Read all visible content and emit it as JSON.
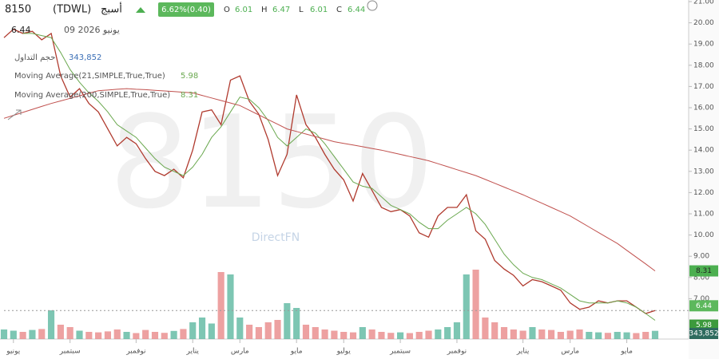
{
  "chart_data": {
    "type": "line",
    "symbol": "8150",
    "exchange": "(TDWL)",
    "name": "أسبج",
    "change_label": "6.62%(0.40)",
    "ohlc": [
      {
        "label": "O",
        "value": 6.01
      },
      {
        "label": "H",
        "value": 6.47
      },
      {
        "label": "L",
        "value": 6.01
      },
      {
        "label": "C",
        "value": 6.44
      }
    ],
    "date": "09 يونيو 2026",
    "watermark": "8150",
    "brand": "DirectFN",
    "xlim": [
      0,
      69
    ],
    "xticks": [
      {
        "value": 1,
        "label": "يونيو"
      },
      {
        "value": 7,
        "label": "سبتمبر"
      },
      {
        "value": 14,
        "label": "نوفمبر"
      },
      {
        "value": 20,
        "label": "يناير"
      },
      {
        "value": 25,
        "label": "مارس"
      },
      {
        "value": 31,
        "label": "مايو"
      },
      {
        "value": 36,
        "label": "يوليو"
      },
      {
        "value": 42,
        "label": "سبتمبر"
      },
      {
        "value": 48,
        "label": "نوفمبر"
      },
      {
        "value": 55,
        "label": "يناير"
      },
      {
        "value": 60,
        "label": "مارس"
      },
      {
        "value": 66,
        "label": "مايو"
      }
    ],
    "ylim": [
      6,
      21
    ],
    "yticks": [
      {
        "value": 7,
        "label": "7.00"
      },
      {
        "value": 8,
        "label": "8.00"
      },
      {
        "value": 9,
        "label": "9.00"
      },
      {
        "value": 10,
        "label": "10.00"
      },
      {
        "value": 11,
        "label": "11.00"
      },
      {
        "value": 12,
        "label": "12.00"
      },
      {
        "value": 13,
        "label": "13.00"
      },
      {
        "value": 14,
        "label": "14.00"
      },
      {
        "value": 15,
        "label": "15.00"
      },
      {
        "value": 16,
        "label": "16.00"
      },
      {
        "value": 17,
        "label": "17.00"
      },
      {
        "value": 18,
        "label": "18.00"
      },
      {
        "value": 19,
        "label": "19.00"
      },
      {
        "value": 20,
        "label": "20.00"
      },
      {
        "value": 21,
        "label": "21.00"
      }
    ],
    "price": {
      "color": "#b03a2e",
      "values": [
        19.3,
        19.7,
        19.5,
        19.6,
        19.2,
        19.5,
        17.5,
        16.5,
        16.9,
        16.2,
        15.8,
        15.0,
        14.2,
        14.6,
        14.3,
        13.6,
        13.0,
        12.8,
        13.1,
        12.7,
        14.0,
        15.8,
        15.9,
        15.2,
        17.3,
        17.5,
        16.3,
        15.7,
        14.5,
        12.8,
        13.8,
        16.6,
        15.2,
        14.6,
        13.8,
        13.1,
        12.6,
        11.6,
        12.9,
        12.1,
        11.3,
        11.1,
        11.2,
        10.9,
        10.1,
        9.9,
        10.9,
        11.3,
        11.3,
        11.9,
        10.2,
        9.8,
        8.8,
        8.4,
        8.1,
        7.6,
        7.9,
        7.8,
        7.6,
        7.4,
        6.8,
        6.5,
        6.6,
        6.9,
        6.8,
        6.9,
        6.9,
        6.6,
        6.3,
        6.44
      ]
    },
    "series": [
      {
        "name": "Moving Average(21,SIMPLE,True,True)",
        "color": "#6aa84f",
        "values": [
          null,
          null,
          19.5,
          19.5,
          19.4,
          19.3,
          18.6,
          17.8,
          17.2,
          16.7,
          16.3,
          15.8,
          15.2,
          14.9,
          14.6,
          14.1,
          13.6,
          13.2,
          13.0,
          12.8,
          13.2,
          13.8,
          14.6,
          15.1,
          15.8,
          16.5,
          16.4,
          16.0,
          15.4,
          14.6,
          14.2,
          14.6,
          15.0,
          14.8,
          14.3,
          13.7,
          13.1,
          12.5,
          12.3,
          12.2,
          11.8,
          11.4,
          11.2,
          11.0,
          10.6,
          10.3,
          10.3,
          10.7,
          11.0,
          11.3,
          11.0,
          10.5,
          9.8,
          9.1,
          8.6,
          8.2,
          8.0,
          7.9,
          7.7,
          7.5,
          7.2,
          6.9,
          6.8,
          6.8,
          6.8,
          6.9,
          6.8,
          6.6,
          6.3,
          5.98
        ]
      },
      {
        "name": "Moving Average(200,SIMPLE,True,True)",
        "color": "#c0504d",
        "values": [
          15.5,
          15.64,
          15.78,
          15.92,
          16.06,
          16.2,
          16.32,
          16.44,
          16.56,
          16.68,
          16.8,
          16.83,
          16.87,
          16.9,
          16.87,
          16.85,
          16.82,
          16.79,
          16.76,
          16.73,
          16.7,
          16.58,
          16.46,
          16.34,
          16.22,
          16.1,
          15.88,
          15.66,
          15.44,
          15.22,
          15.0,
          14.88,
          14.76,
          14.64,
          14.52,
          14.4,
          14.32,
          14.24,
          14.16,
          14.08,
          14.0,
          13.9,
          13.8,
          13.7,
          13.6,
          13.5,
          13.36,
          13.22,
          13.08,
          12.94,
          12.8,
          12.62,
          12.44,
          12.26,
          12.08,
          11.9,
          11.7,
          11.5,
          11.3,
          11.1,
          10.9,
          10.64,
          10.38,
          10.12,
          9.86,
          9.6,
          9.28,
          8.96,
          8.64,
          8.31
        ]
      }
    ],
    "volume": {
      "name": "حجم التداول",
      "last_label": "343,852",
      "vlim": [
        0,
        3000000
      ],
      "values": [
        400000,
        350000,
        300000,
        380000,
        420000,
        1200000,
        600000,
        500000,
        350000,
        300000,
        280000,
        320000,
        400000,
        300000,
        250000,
        380000,
        300000,
        260000,
        340000,
        420000,
        700000,
        900000,
        650000,
        2800000,
        2700000,
        900000,
        600000,
        500000,
        700000,
        800000,
        1500000,
        1300000,
        600000,
        500000,
        400000,
        350000,
        300000,
        280000,
        500000,
        400000,
        300000,
        260000,
        280000,
        250000,
        300000,
        350000,
        400000,
        500000,
        700000,
        2700000,
        2900000,
        900000,
        700000,
        500000,
        400000,
        350000,
        500000,
        400000,
        380000,
        300000,
        350000,
        400000,
        300000,
        280000,
        260000,
        300000,
        280000,
        250000,
        300000,
        343852
      ]
    }
  }
}
